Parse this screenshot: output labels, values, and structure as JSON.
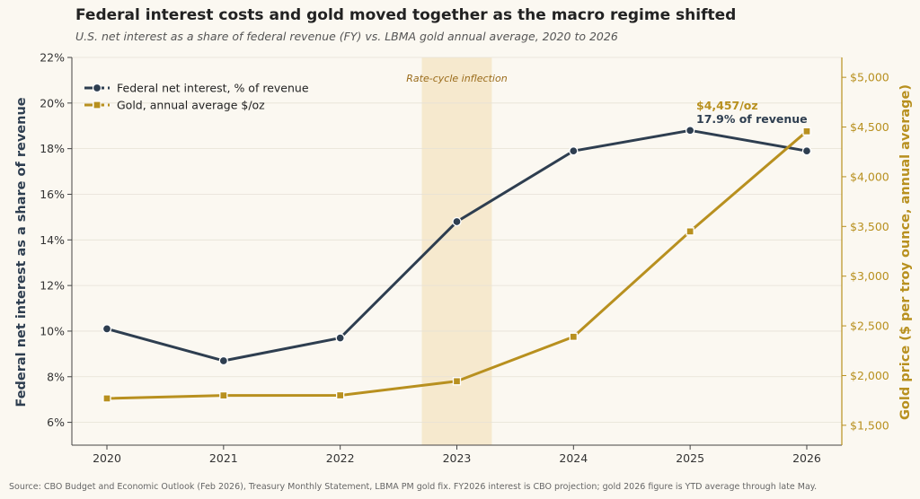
{
  "chart_data": {
    "type": "line",
    "title": "Federal interest costs and gold moved together as the macro regime shifted",
    "subtitle": "U.S. net interest as a share of federal revenue (FY) vs. LBMA gold annual average, 2020 to 2026",
    "x": [
      "2020",
      "2021",
      "2022",
      "2023",
      "2024",
      "2025",
      "2026"
    ],
    "ylabel_left": "Federal net interest as a share of revenue",
    "ylabel_right": "Gold price ($ per troy ounce, annual average)",
    "ylim_left": [
      5,
      22
    ],
    "yticks_left": [
      "6%",
      "8%",
      "10%",
      "12%",
      "14%",
      "16%",
      "18%",
      "20%",
      "22%"
    ],
    "yticks_left_values": [
      6,
      8,
      10,
      12,
      14,
      16,
      18,
      20,
      22
    ],
    "ylim_right": [
      1300,
      5200
    ],
    "yticks_right": [
      "$1,500",
      "$2,000",
      "$2,500",
      "$3,000",
      "$3,500",
      "$4,000",
      "$4,500",
      "$5,000"
    ],
    "yticks_right_values": [
      1500,
      2000,
      2500,
      3000,
      3500,
      4000,
      4500,
      5000
    ],
    "series": [
      {
        "name": "Federal net interest, % of revenue",
        "axis": "left",
        "color": "#2e3e50",
        "marker": "circle",
        "values": [
          10.1,
          8.7,
          9.7,
          14.8,
          17.9,
          18.8,
          17.9
        ]
      },
      {
        "name": "Gold, annual average $/oz",
        "axis": "right",
        "color": "#b8901f",
        "marker": "square",
        "values": [
          1770,
          1800,
          1801,
          1943,
          2390,
          3450,
          4457
        ]
      }
    ],
    "shaded_band": {
      "label": "Rate-cycle inflection",
      "x_from": "2022",
      "x_to": "2023",
      "x_start_offset": 0.7,
      "x_end_offset": 1.3
    },
    "annotations": {
      "gold_last": "$4,457/oz",
      "interest_last": "17.9% of revenue"
    },
    "legend_position": "top-left",
    "grid": "horizontal"
  },
  "footer": {
    "source": "Source: CBO Budget and Economic Outlook (Feb 2026), Treasury Monthly Statement, LBMA PM gold fix. FY2026 interest is CBO projection; gold 2026 figure is YTD average through late May."
  },
  "colors": {
    "background": "#fbf8f1",
    "interest": "#2e3e50",
    "gold": "#b8901f",
    "band": "#f5e6c8",
    "grid": "#e6e1d6"
  }
}
